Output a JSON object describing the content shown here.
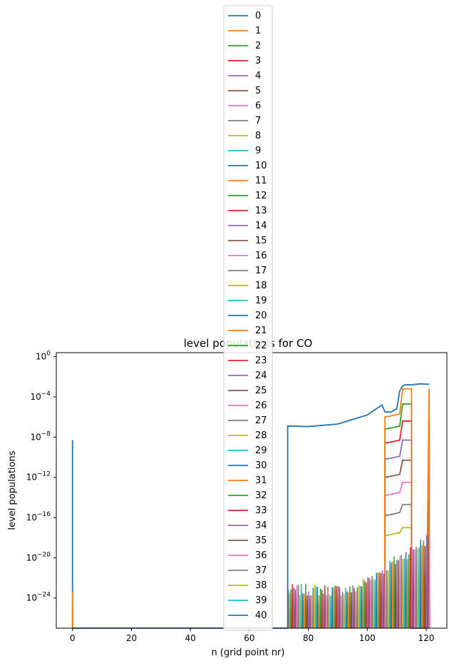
{
  "chart_data": {
    "type": "line",
    "title": "level populations for CO",
    "xlabel": "n (grid point nr)",
    "ylabel": "level populations",
    "yscale": "log",
    "xlim": [
      -5.5,
      127
    ],
    "ylim_exponent": [
      -27,
      0.4
    ],
    "x_ticks": [
      0,
      20,
      40,
      60,
      80,
      100,
      120
    ],
    "y_ticks": [
      {
        "exp": 0,
        "base": "10",
        "sup": "0"
      },
      {
        "exp": -4,
        "base": "10",
        "sup": "−4"
      },
      {
        "exp": -8,
        "base": "10",
        "sup": "−8"
      },
      {
        "exp": -12,
        "base": "10",
        "sup": "−12"
      },
      {
        "exp": -16,
        "base": "10",
        "sup": "−16"
      },
      {
        "exp": -20,
        "base": "10",
        "sup": "−20"
      },
      {
        "exp": -24,
        "base": "10",
        "sup": "−24"
      }
    ],
    "legend_position": "upper center",
    "grid": false,
    "colors": [
      "#1f77b4",
      "#ff7f0e",
      "#2ca02c",
      "#d62728",
      "#9467bd",
      "#8c564b",
      "#e377c2",
      "#7f7f7f",
      "#bcbd22",
      "#17becf"
    ],
    "series_names": [
      "0",
      "1",
      "2",
      "3",
      "4",
      "5",
      "6",
      "7",
      "8",
      "9",
      "10",
      "11",
      "12",
      "13",
      "14",
      "15",
      "16",
      "17",
      "18",
      "19",
      "20",
      "21",
      "22",
      "23",
      "24",
      "25",
      "26",
      "27",
      "28",
      "29",
      "30",
      "31",
      "32",
      "33",
      "34",
      "35",
      "36",
      "37",
      "38",
      "39",
      "40"
    ],
    "series_key": [
      {
        "name": "0",
        "x": [
          0,
          0,
          0,
          73,
          73,
          80,
          90,
          100,
          105,
          106,
          108,
          110,
          111,
          112,
          113,
          115,
          118,
          121
        ],
        "log10y": [
          -27,
          -8.3,
          -27,
          -27,
          -6.9,
          -6.95,
          -6.7,
          -5.8,
          -4.8,
          -5.5,
          -5.5,
          -5.2,
          -3.4,
          -2.9,
          -2.8,
          -2.8,
          -2.7,
          -2.75
        ]
      },
      {
        "name": "1",
        "x": [
          106,
          106,
          108,
          111,
          112,
          115,
          115,
          120,
          121,
          121
        ],
        "log10y": [
          -27,
          -6.0,
          -5.9,
          -5.7,
          -3.2,
          -3.2,
          -27,
          -27,
          -3.2,
          -27
        ]
      },
      {
        "name": "2",
        "x": [
          106,
          106,
          108,
          111,
          112,
          115,
          115,
          120,
          121,
          121
        ],
        "log10y": [
          -27,
          -7.2,
          -7.1,
          -6.9,
          -4.7,
          -4.7,
          -27,
          -27,
          -4.7,
          -27
        ]
      },
      {
        "name": "3",
        "x": [
          106,
          106,
          108,
          111,
          112,
          115,
          115,
          120,
          121,
          121
        ],
        "log10y": [
          -27,
          -8.6,
          -8.5,
          -8.3,
          -6.4,
          -6.4,
          -27,
          -27,
          -6.4,
          -27
        ]
      },
      {
        "name": "4",
        "x": [
          106,
          106,
          108,
          111,
          112,
          115,
          115,
          120,
          121,
          121
        ],
        "log10y": [
          -27,
          -10.2,
          -10.1,
          -9.9,
          -8.3,
          -8.3,
          -27,
          -27,
          -8.3,
          -27
        ]
      },
      {
        "name": "5",
        "x": [
          106,
          106,
          108,
          111,
          112,
          115,
          115,
          120,
          121,
          121
        ],
        "log10y": [
          -27,
          -12.0,
          -11.9,
          -11.7,
          -10.3,
          -10.3,
          -27,
          -27,
          -10.3,
          -27
        ]
      },
      {
        "name": "6",
        "x": [
          106,
          106,
          108,
          111,
          112,
          115,
          115,
          120,
          121,
          121
        ],
        "log10y": [
          -27,
          -13.8,
          -13.7,
          -13.5,
          -12.5,
          -12.5,
          -27,
          -27,
          -12.5,
          -27
        ]
      },
      {
        "name": "7",
        "x": [
          106,
          106,
          108,
          111,
          112,
          115,
          115,
          120,
          121,
          121
        ],
        "log10y": [
          -27,
          -15.8,
          -15.7,
          -15.5,
          -14.7,
          -14.7,
          -27,
          -27,
          -14.7,
          -27
        ]
      },
      {
        "name": "8",
        "x": [
          106,
          106,
          108,
          111,
          112,
          115,
          115,
          120,
          121,
          121
        ],
        "log10y": [
          -27,
          -17.8,
          -17.7,
          -17.5,
          -17.0,
          -17.0,
          -27,
          -27,
          -17.0,
          -27
        ]
      }
    ]
  },
  "annotation_note": ""
}
